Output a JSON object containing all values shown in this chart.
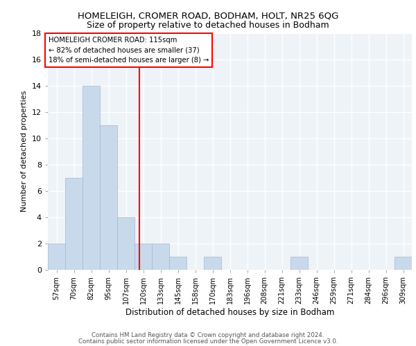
{
  "title1": "HOMELEIGH, CROMER ROAD, BODHAM, HOLT, NR25 6QG",
  "title2": "Size of property relative to detached houses in Bodham",
  "xlabel": "Distribution of detached houses by size in Bodham",
  "ylabel": "Number of detached properties",
  "categories": [
    "57sqm",
    "70sqm",
    "82sqm",
    "95sqm",
    "107sqm",
    "120sqm",
    "133sqm",
    "145sqm",
    "158sqm",
    "170sqm",
    "183sqm",
    "196sqm",
    "208sqm",
    "221sqm",
    "233sqm",
    "246sqm",
    "259sqm",
    "271sqm",
    "284sqm",
    "296sqm",
    "309sqm"
  ],
  "values": [
    2,
    7,
    14,
    11,
    4,
    2,
    2,
    1,
    0,
    1,
    0,
    0,
    0,
    0,
    1,
    0,
    0,
    0,
    0,
    0,
    1
  ],
  "bar_color": "#c9d9ec",
  "bar_edge_color": "#a0b8d0",
  "red_line_x": 4.77,
  "annotation_line1": "HOMELEIGH CROMER ROAD: 115sqm",
  "annotation_line2": "← 82% of detached houses are smaller (37)",
  "annotation_line3": "18% of semi-detached houses are larger (8) →",
  "ylim": [
    0,
    18
  ],
  "yticks": [
    0,
    2,
    4,
    6,
    8,
    10,
    12,
    14,
    16,
    18
  ],
  "footer1": "Contains HM Land Registry data © Crown copyright and database right 2024.",
  "footer2": "Contains public sector information licensed under the Open Government Licence v3.0.",
  "bg_color": "#eef3f8",
  "grid_color": "#ffffff"
}
